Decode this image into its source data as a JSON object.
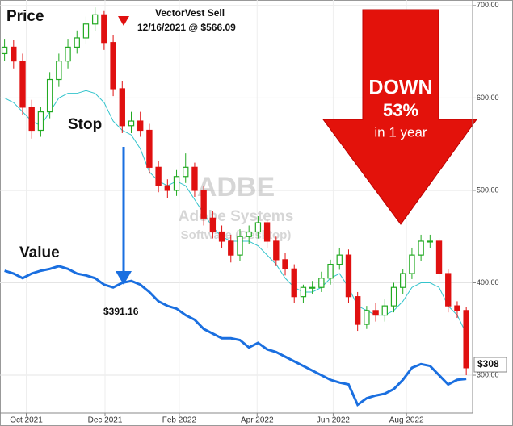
{
  "chart_data": {
    "type": "candlestick",
    "title": "Price",
    "ylim": [
      259,
      706
    ],
    "yticks": [
      {
        "value": 300,
        "label": "300.00"
      },
      {
        "value": 400,
        "label": "400.00"
      },
      {
        "value": 500,
        "label": "500.00"
      },
      {
        "value": 600,
        "label": "600.00"
      },
      {
        "value": 700,
        "label": "700.00"
      }
    ],
    "xlim": [
      0,
      52.2
    ],
    "xticks": [
      {
        "value": 2.9,
        "label": "Oct 2021"
      },
      {
        "value": 11.6,
        "label": "Dec 2021"
      },
      {
        "value": 19.8,
        "label": "Feb 2022"
      },
      {
        "value": 28.4,
        "label": "Apr 2022"
      },
      {
        "value": 36.8,
        "label": "Jun 2022"
      },
      {
        "value": 44.9,
        "label": "Aug 2022"
      }
    ],
    "grid": true,
    "up_color": "#22aa22",
    "down_color": "#e01010",
    "x": [
      0.5,
      1.5,
      2.5,
      3.5,
      4.5,
      5.5,
      6.5,
      7.5,
      8.5,
      9.5,
      10.5,
      11.5,
      12.5,
      13.5,
      14.5,
      15.5,
      16.5,
      17.5,
      18.5,
      19.5,
      20.5,
      21.5,
      22.5,
      23.5,
      24.5,
      25.5,
      26.5,
      27.5,
      28.5,
      29.5,
      30.5,
      31.5,
      32.5,
      33.5,
      34.5,
      35.5,
      36.5,
      37.5,
      38.5,
      39.5,
      40.5,
      41.5,
      42.5,
      43.5,
      44.5,
      45.5,
      46.5,
      47.5,
      48.5,
      49.5,
      50.5,
      51.5
    ],
    "open": [
      648,
      655,
      640,
      590,
      565,
      585,
      620,
      640,
      655,
      665,
      680,
      690,
      660,
      610,
      570,
      575,
      565,
      525,
      505,
      500,
      515,
      525,
      500,
      470,
      455,
      445,
      430,
      450,
      455,
      465,
      445,
      425,
      415,
      385,
      395,
      395,
      405,
      420,
      430,
      385,
      355,
      370,
      365,
      375,
      395,
      410,
      430,
      445,
      445,
      410,
      375,
      370
    ],
    "high": [
      664,
      663,
      648,
      598,
      590,
      628,
      648,
      664,
      673,
      688,
      698,
      694,
      668,
      618,
      585,
      585,
      572,
      532,
      512,
      522,
      540,
      530,
      505,
      478,
      462,
      452,
      458,
      462,
      472,
      468,
      450,
      432,
      420,
      398,
      402,
      412,
      425,
      438,
      436,
      390,
      375,
      378,
      382,
      400,
      415,
      438,
      452,
      452,
      448,
      415,
      380,
      374
    ],
    "low": [
      640,
      632,
      582,
      556,
      558,
      578,
      612,
      632,
      648,
      658,
      672,
      652,
      602,
      562,
      562,
      558,
      518,
      498,
      492,
      494,
      508,
      493,
      462,
      448,
      438,
      422,
      424,
      442,
      448,
      438,
      418,
      408,
      378,
      378,
      388,
      390,
      398,
      414,
      378,
      348,
      350,
      358,
      358,
      368,
      388,
      404,
      424,
      438,
      402,
      368,
      362,
      300
    ],
    "close": [
      655,
      640,
      590,
      565,
      585,
      620,
      640,
      655,
      665,
      680,
      690,
      660,
      610,
      570,
      575,
      565,
      525,
      505,
      500,
      515,
      525,
      500,
      470,
      455,
      445,
      430,
      450,
      455,
      465,
      445,
      425,
      415,
      385,
      395,
      395,
      405,
      420,
      430,
      385,
      355,
      370,
      365,
      375,
      395,
      410,
      430,
      445,
      445,
      410,
      375,
      370,
      308
    ],
    "series": [
      {
        "name": "Stop",
        "color": "#33c4cc",
        "values": [
          600,
          595,
          585,
          575,
          570,
          585,
          600,
          605,
          605,
          608,
          605,
          595,
          575,
          565,
          560,
          545,
          520,
          510,
          505,
          510,
          505,
          490,
          475,
          460,
          450,
          445,
          445,
          445,
          440,
          430,
          420,
          405,
          395,
          390,
          390,
          395,
          405,
          410,
          395,
          375,
          370,
          365,
          365,
          370,
          380,
          395,
          400,
          400,
          395,
          375,
          365,
          345
        ]
      },
      {
        "name": "Value",
        "color": "#1a6fe0",
        "values": [
          413,
          410,
          405,
          410,
          413,
          415,
          418,
          415,
          410,
          408,
          405,
          398,
          395,
          400,
          402,
          398,
          390,
          380,
          375,
          372,
          365,
          360,
          350,
          345,
          340,
          340,
          338,
          330,
          335,
          328,
          325,
          320,
          315,
          310,
          305,
          300,
          295,
          292,
          290,
          268,
          275,
          278,
          280,
          285,
          295,
          308,
          312,
          310,
          300,
          290,
          295,
          296
        ]
      }
    ],
    "annotations": {
      "sell": "VectorVest Sell",
      "sell_detail": "12/16/2021 @ $566.09",
      "value_at_sell": "$391.16",
      "down": "DOWN",
      "percent": "53%",
      "period": "in 1 year",
      "last_price": "$308",
      "symbol": "ADBE",
      "company": "Adobe Systems",
      "industry": "Software (Desktop)"
    }
  }
}
